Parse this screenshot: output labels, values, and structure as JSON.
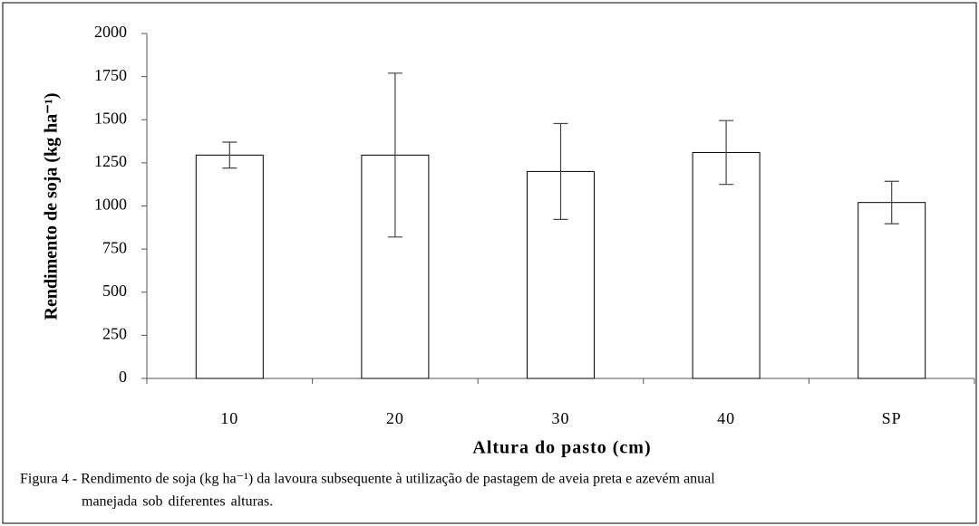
{
  "chart_data": {
    "type": "bar",
    "categories": [
      "10",
      "20",
      "30",
      "40",
      "SP"
    ],
    "values": [
      1295,
      1295,
      1200,
      1310,
      1020
    ],
    "errors": [
      75,
      475,
      278,
      185,
      123
    ],
    "color": "#ffffff",
    "ylim": [
      0,
      2000
    ],
    "yticks": [
      0,
      250,
      500,
      750,
      1000,
      1250,
      1500,
      1750,
      2000
    ],
    "ylabel": "Rendimento de soja (kg ha⁻¹)",
    "xlabel": "Altura do pasto (cm)",
    "caption": [
      "Figura 4 - Rendimento de soja (kg ha⁻¹) da lavoura subsequente à utilização de pastagem de aveia preta e azevém anual",
      "manejada sob diferentes alturas."
    ],
    "grid": false
  }
}
